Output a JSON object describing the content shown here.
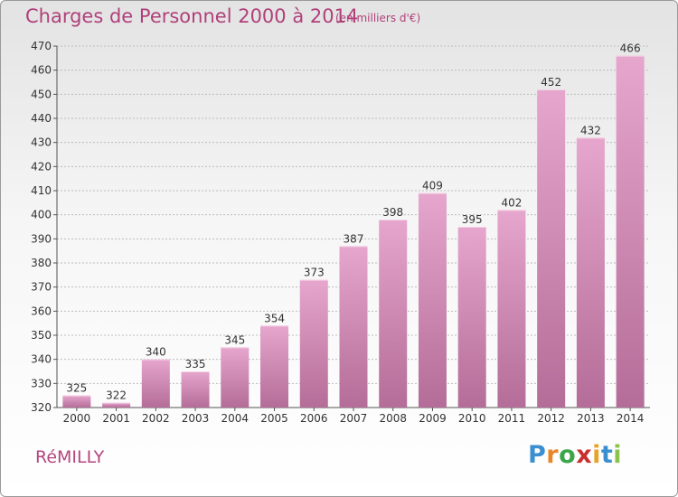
{
  "header": {
    "title": "Charges de Personnel 2000 à 2014",
    "subtitle": "(en milliers d'€)"
  },
  "footer": {
    "location": "RéMILLY",
    "logo_text": "Proxiti",
    "logo_colors": [
      "#3a8fd0",
      "#e8862a",
      "#3aa64a",
      "#c8302f",
      "#e8a42a",
      "#3a8fd0",
      "#8bc34a"
    ]
  },
  "colors": {
    "bar_top": "#e6a6cd",
    "bar_bottom": "#b46d98",
    "text": "#333333",
    "grid": "#bdbdbd"
  },
  "chart_data": {
    "type": "bar",
    "title": "Charges de Personnel 2000 à 2014",
    "subtitle": "(en milliers d'€)",
    "categories": [
      "2000",
      "2001",
      "2002",
      "2003",
      "2004",
      "2005",
      "2006",
      "2007",
      "2008",
      "2009",
      "2010",
      "2011",
      "2012",
      "2013",
      "2014"
    ],
    "values": [
      325,
      322,
      340,
      335,
      345,
      354,
      373,
      387,
      398,
      409,
      395,
      402,
      452,
      432,
      466
    ],
    "ylim": [
      320,
      470
    ],
    "yticks": [
      320,
      330,
      340,
      350,
      360,
      370,
      380,
      390,
      400,
      410,
      420,
      430,
      440,
      450,
      460,
      470
    ],
    "xlabel": "",
    "ylabel": "",
    "grid": true,
    "data_labels": true
  }
}
